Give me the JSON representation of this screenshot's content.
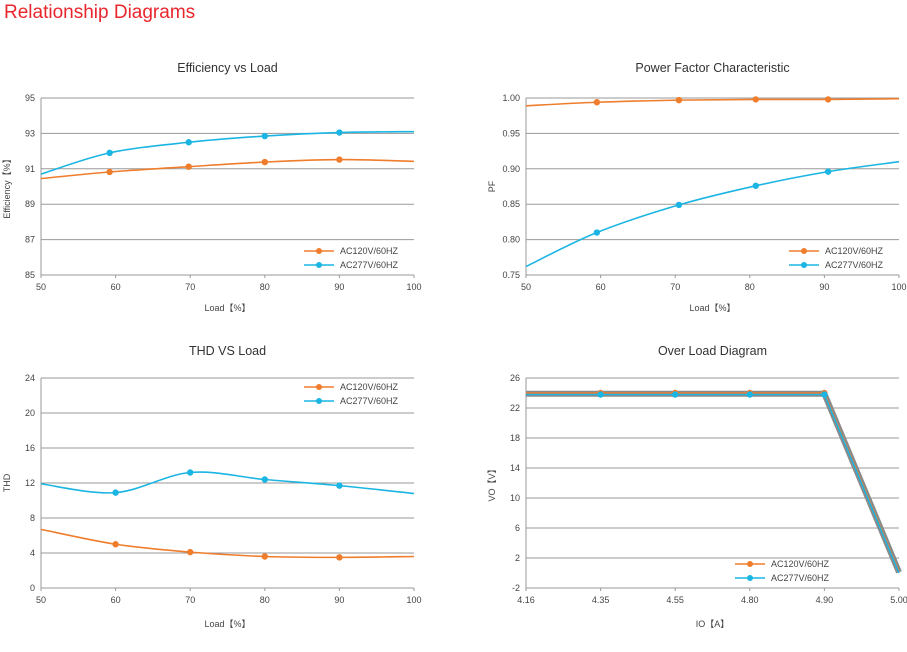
{
  "page": {
    "title": "Relationship Diagrams"
  },
  "colors": {
    "series1": "#ef7d2c",
    "series2": "#1bb5e3",
    "grid": "#9a9a9a",
    "title": "#e8262c"
  },
  "chart_data": [
    {
      "type": "line",
      "title": "Efficiency vs Load",
      "xlabel": "Load【%】",
      "ylabel": "Efficiency【%】",
      "xlim": [
        50,
        100
      ],
      "ylim": [
        85,
        95
      ],
      "xticks": [
        50,
        60,
        70,
        80,
        90,
        100
      ],
      "yticks": [
        85,
        87,
        89,
        91,
        93,
        95
      ],
      "legend_position": "bottom-right",
      "series": [
        {
          "name": "AC120V/60HZ",
          "color": "#ef7d2c",
          "x": [
            50,
            59.2,
            69.8,
            80,
            90,
            100
          ],
          "y": [
            90.45,
            90.82,
            91.12,
            91.38,
            91.52,
            91.42
          ],
          "markers": [
            59.2,
            69.8,
            80,
            90
          ]
        },
        {
          "name": "AC277V/60HZ",
          "color": "#1bb5e3",
          "x": [
            50,
            59.2,
            69.8,
            80,
            90,
            100
          ],
          "y": [
            90.7,
            91.9,
            92.5,
            92.85,
            93.05,
            93.1
          ],
          "markers": [
            59.2,
            69.8,
            80,
            90
          ]
        }
      ]
    },
    {
      "type": "line",
      "title": "Power Factor Characteristic",
      "xlabel": "Load【%】",
      "ylabel": "PF",
      "xlim": [
        50,
        100
      ],
      "ylim": [
        0.75,
        1.0
      ],
      "xticks": [
        50,
        60,
        70,
        80,
        90,
        100
      ],
      "yticks": [
        "0.75",
        "0.80",
        "0.85",
        "0.90",
        "0.95",
        "1.00"
      ],
      "legend_position": "bottom-right",
      "series": [
        {
          "name": "AC120V/60HZ",
          "color": "#ef7d2c",
          "x": [
            50,
            59.5,
            70.5,
            80.8,
            90.5,
            100
          ],
          "y": [
            0.989,
            0.994,
            0.997,
            0.998,
            0.998,
            0.999
          ],
          "markers": [
            59.5,
            70.5,
            80.8,
            90.5
          ]
        },
        {
          "name": "AC277V/60HZ",
          "color": "#1bb5e3",
          "x": [
            50,
            59.5,
            70.5,
            80.8,
            90.5,
            100
          ],
          "y": [
            0.762,
            0.81,
            0.849,
            0.876,
            0.896,
            0.91
          ],
          "markers": [
            59.5,
            70.5,
            80.8,
            90.5
          ]
        }
      ]
    },
    {
      "type": "line",
      "title": "THD VS Load",
      "xlabel": "Load【%】",
      "ylabel": "THD",
      "xlim": [
        50,
        100
      ],
      "ylim": [
        0,
        24
      ],
      "xticks": [
        50,
        60,
        70,
        80,
        90,
        100
      ],
      "yticks": [
        0,
        4,
        8,
        12,
        16,
        20,
        24
      ],
      "legend_position": "top-right",
      "series": [
        {
          "name": "AC120V/60HZ",
          "color": "#ef7d2c",
          "x": [
            50,
            60,
            70,
            80,
            90,
            100
          ],
          "y": [
            6.7,
            5.0,
            4.1,
            3.6,
            3.5,
            3.6
          ],
          "markers": [
            60,
            70,
            80,
            90
          ]
        },
        {
          "name": "AC277V/60HZ",
          "color": "#1bb5e3",
          "x": [
            50,
            60,
            70,
            80,
            90,
            100
          ],
          "y": [
            11.9,
            10.9,
            13.2,
            12.4,
            11.7,
            10.8
          ],
          "markers": [
            60,
            70,
            80,
            90
          ]
        }
      ]
    },
    {
      "type": "line",
      "title": "Over Load Diagram",
      "xlabel": "IO【A】",
      "ylabel": "VO【V】",
      "xcategories": [
        "4.16",
        "4.35",
        "4.55",
        "4.80",
        "4.90",
        "5.00"
      ],
      "ylim": [
        -2,
        26
      ],
      "yticks": [
        -2,
        2,
        6,
        10,
        14,
        18,
        22,
        26
      ],
      "legend_position": "bottom-right",
      "series": [
        {
          "name": "AC120V/60HZ",
          "color": "#ef7d2c",
          "x": [
            0,
            1,
            2,
            3,
            4,
            5
          ],
          "y": [
            24,
            24,
            24,
            24,
            24,
            0.2
          ],
          "markers": [
            1,
            2,
            3,
            4
          ]
        },
        {
          "name": "AC277V/60HZ",
          "color": "#1bb5e3",
          "x": [
            0,
            1,
            2,
            3,
            4,
            5
          ],
          "y": [
            23.8,
            23.8,
            23.8,
            23.8,
            23.8,
            0.0
          ],
          "markers": [
            1,
            2,
            3,
            4
          ]
        }
      ]
    }
  ]
}
